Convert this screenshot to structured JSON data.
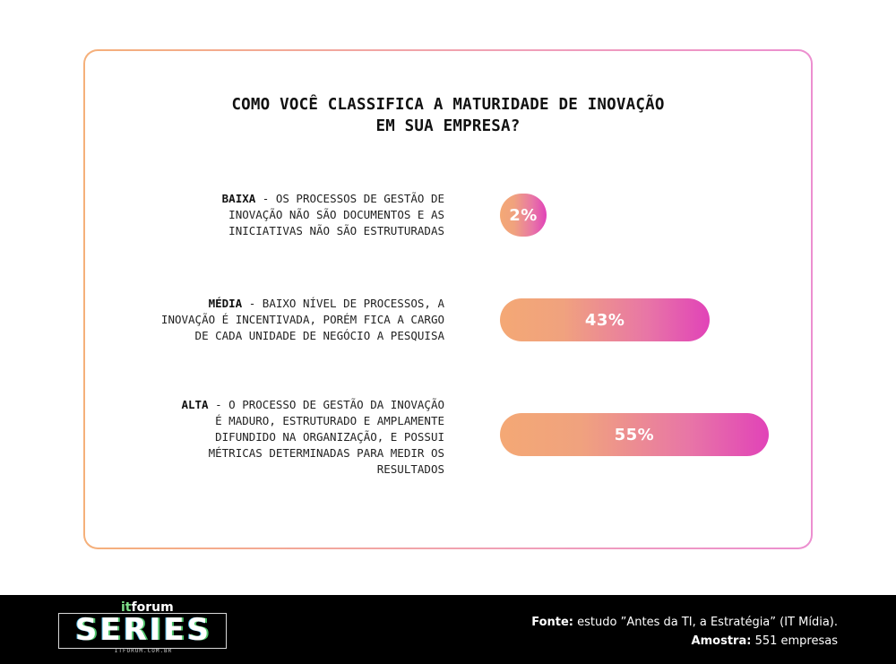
{
  "chart_data": {
    "type": "bar",
    "orientation": "horizontal",
    "title": "COMO VOCÊ CLASSIFICA A MATURIDADE DE INOVAÇÃO EM SUA EMPRESA?",
    "title_lines": [
      "COMO VOCÊ CLASSIFICA A MATURIDADE DE INOVAÇÃO",
      "EM SUA EMPRESA?"
    ],
    "categories": [
      {
        "name": "BAIXA",
        "description_lines": [
          " - OS PROCESSOS DE GESTÃO DE",
          "INOVAÇÃO NÃO SÃO DOCUMENTOS E AS",
          "INICIATIVAS NÃO SÃO ESTRUTURADAS"
        ]
      },
      {
        "name": "MÉDIA",
        "description_lines": " - BAIXO NÍVEL DE PROCESSOS, A|INOVAÇÃO É INCENTIVADA, PORÉM FICA A CARGO|DE CADA UNIDADE DE NEGÓCIO A PESQUISA"
      },
      {
        "name": "ALTA",
        "description_lines": " - O PROCESSO DE GESTÃO DA INOVAÇÃO|É MADURO, ESTRUTURADO E AMPLAMENTE|DIFUNDIDO NA ORGANIZAÇÃO, E POSSUI|MÉTRICAS DETERMINADAS PARA MEDIR OS|RESULTADOS"
      }
    ],
    "values": [
      2,
      43,
      55
    ],
    "value_labels": [
      "2%",
      "43%",
      "55%"
    ],
    "unit": "%",
    "colors": {
      "gradient_start": "#f4a875",
      "gradient_end": "#e143b8"
    }
  },
  "footer": {
    "logo": {
      "top": "itforum",
      "word": "SERIES",
      "url": "ITFORUM.COM.BR"
    },
    "source_label": "Fonte:",
    "source_text": "estudo ”Antes da TI, a Estratégia” (IT Mídia).",
    "sample_label": "Amostra:",
    "sample_text": "551 empresas"
  }
}
